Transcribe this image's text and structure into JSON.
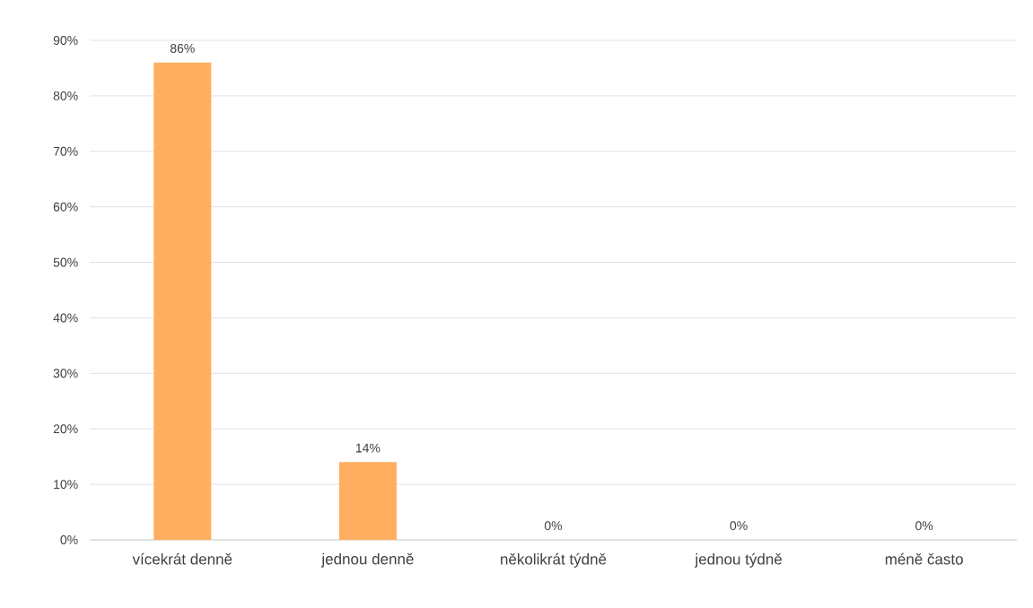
{
  "chart_data": {
    "type": "bar",
    "categories": [
      "vícekrát denně",
      "jednou denně",
      "několikrát týdně",
      "jednou týdně",
      "méně často"
    ],
    "values": [
      86,
      14,
      0,
      0,
      0
    ],
    "value_labels": [
      "86%",
      "14%",
      "0%",
      "0%",
      "0%"
    ],
    "color": "#ffae5f",
    "ylim": [
      0,
      90
    ],
    "yticks": [
      {
        "value": 0,
        "label": "0%"
      },
      {
        "value": 10,
        "label": "10%"
      },
      {
        "value": 20,
        "label": "20%"
      },
      {
        "value": 30,
        "label": "30%"
      },
      {
        "value": 40,
        "label": "40%"
      },
      {
        "value": 50,
        "label": "50%"
      },
      {
        "value": 60,
        "label": "60%"
      },
      {
        "value": 70,
        "label": "70%"
      },
      {
        "value": 80,
        "label": "80%"
      },
      {
        "value": 90,
        "label": "90%"
      }
    ],
    "grid": "y"
  }
}
